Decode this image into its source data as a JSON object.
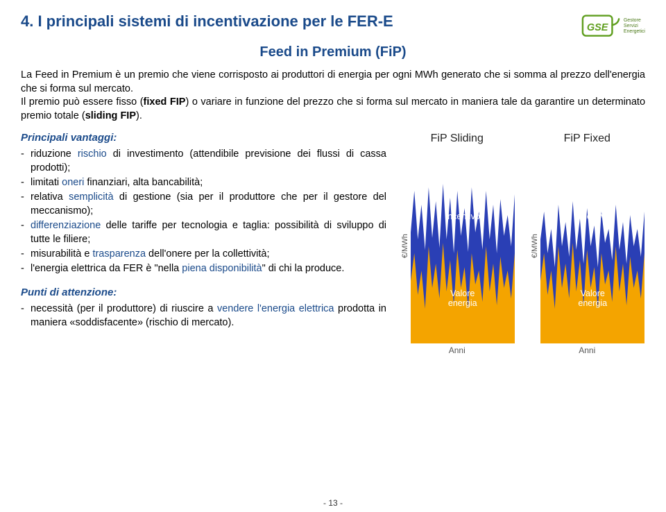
{
  "header": {
    "title": "4. I principali sistemi di incentivazione per le FER-E",
    "logo_lines": [
      "Gestore",
      "Servizi",
      "Energetici"
    ]
  },
  "subtitle": "Feed in Premium (FiP)",
  "intro_parts": {
    "p1": "La Feed in Premium è un premio che viene corrisposto ai produttori di energia per ogni MWh generato che si somma al prezzo dell'energia che si forma sul mercato.",
    "p2a": "Il premio può essere fisso (",
    "fixed": "fixed FIP",
    "p2b": ") o variare in funzione del prezzo che si forma sul mercato in maniera tale da garantire un determinato premio totale (",
    "sliding": "sliding FIP",
    "p2c": ")."
  },
  "vantaggi": {
    "heading": "Principali vantaggi:",
    "items": [
      {
        "pre": "riduzione ",
        "hl": "rischio",
        "post": " di investimento (attendibile previsione dei flussi di cassa prodotti);"
      },
      {
        "pre": "limitati ",
        "hl": "oneri",
        "post": " finanziari, alta bancabilità;"
      },
      {
        "pre": "relativa ",
        "hl": "semplicità",
        "post": " di gestione (sia per il produttore che per il gestore del meccanismo);"
      },
      {
        "pre": "",
        "hl": "differenziazione",
        "post": " delle tariffe per tecnologia e taglia: possibilità di sviluppo di tutte le filiere;"
      },
      {
        "pre": "misurabilità e ",
        "hl": "trasparenza",
        "post": " dell'onere per la collettività;"
      },
      {
        "pre": "l'energia elettrica da FER è \"nella ",
        "hl": "piena disponibilità",
        "post": "\" di chi la produce."
      }
    ]
  },
  "punti": {
    "heading": "Punti di attenzione:",
    "items": [
      {
        "pre": "necessità (per il produttore) di riuscire a ",
        "hl": "vendere l'energia elettrica",
        "post": " prodotta in maniera «soddisfacente» (rischio di mercato)."
      }
    ]
  },
  "charts": {
    "ylabel": "€/MWh",
    "xlabel": "Anni",
    "label_incentivo": "Incentivo",
    "label_valore": "Valore energia",
    "colors": {
      "blue": "#2a3fb5",
      "orange": "#f4a400",
      "text": "#ffffff"
    },
    "sliding": {
      "title": "FiP Sliding",
      "top_line": 40,
      "orange_y": [
        190,
        150,
        210,
        175,
        230,
        140,
        200,
        165,
        215,
        135,
        205,
        160,
        225,
        145,
        200,
        170,
        230,
        150,
        195,
        175,
        220,
        140,
        205,
        165,
        225,
        155,
        200,
        175,
        215,
        150
      ],
      "blue_y": [
        120,
        60,
        130,
        80,
        145,
        55,
        128,
        75,
        142,
        50,
        130,
        70,
        150,
        60,
        125,
        85,
        148,
        55,
        120,
        90,
        145,
        60,
        130,
        80,
        150,
        72,
        125,
        95,
        140,
        65
      ]
    },
    "fixed": {
      "title": "FiP Fixed",
      "orange_y": [
        190,
        150,
        210,
        175,
        230,
        140,
        200,
        165,
        215,
        135,
        205,
        160,
        225,
        145,
        200,
        170,
        230,
        150,
        195,
        175,
        220,
        140,
        205,
        165,
        225,
        155,
        200,
        175,
        215,
        150
      ],
      "blue_y": [
        130,
        90,
        150,
        115,
        170,
        80,
        140,
        105,
        155,
        75,
        145,
        100,
        165,
        85,
        140,
        110,
        170,
        90,
        135,
        115,
        160,
        80,
        145,
        105,
        165,
        95,
        140,
        115,
        155,
        90
      ]
    }
  },
  "pagenum": "- 13 -"
}
